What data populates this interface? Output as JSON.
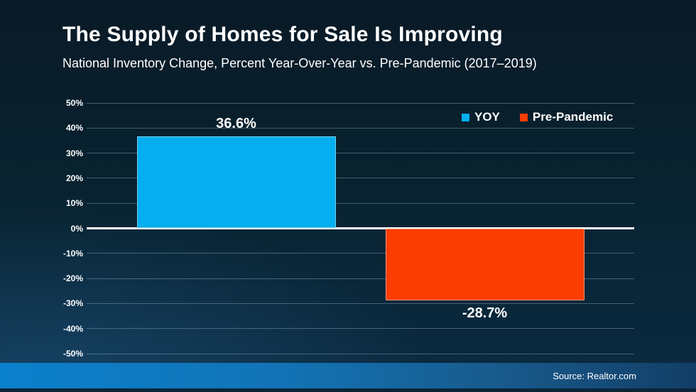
{
  "title": "The Supply of Homes for Sale Is Improving",
  "subtitle": "National Inventory Change, Percent Year-Over-Year vs. Pre-Pandemic (2017–2019)",
  "source": "Source: Realtor.com",
  "colors": {
    "yoy_blue": "#05aeef",
    "pre_pandemic_orange": "#fb3d02",
    "zero_line": "#ffffff",
    "gridline": "rgba(130,156,176,0.50)",
    "footer_left": "#0b80cc",
    "footer_right": "#123e66"
  },
  "chart_data": {
    "type": "bar",
    "title": "The Supply of Homes for Sale Is Improving",
    "subtitle": "National Inventory Change, Percent Year-Over-Year vs. Pre-Pandemic (2017–2019)",
    "categories": [
      "YOY",
      "Pre-Pandemic"
    ],
    "series": [
      {
        "name": "YOY",
        "value": 36.6,
        "label": "36.6%",
        "color": "#05aeef"
      },
      {
        "name": "Pre-Pandemic",
        "value": -28.7,
        "label": "-28.7%",
        "color": "#fb3d02"
      }
    ],
    "ylim": [
      -50,
      50
    ],
    "yticks": [
      "50%",
      "40%",
      "30%",
      "20%",
      "10%",
      "0%",
      "-10%",
      "-20%",
      "-30%",
      "-40%",
      "-50%"
    ],
    "xlabel": "",
    "ylabel": "",
    "grid": true,
    "legend_position": "top-right",
    "source": "Source: Realtor.com"
  }
}
